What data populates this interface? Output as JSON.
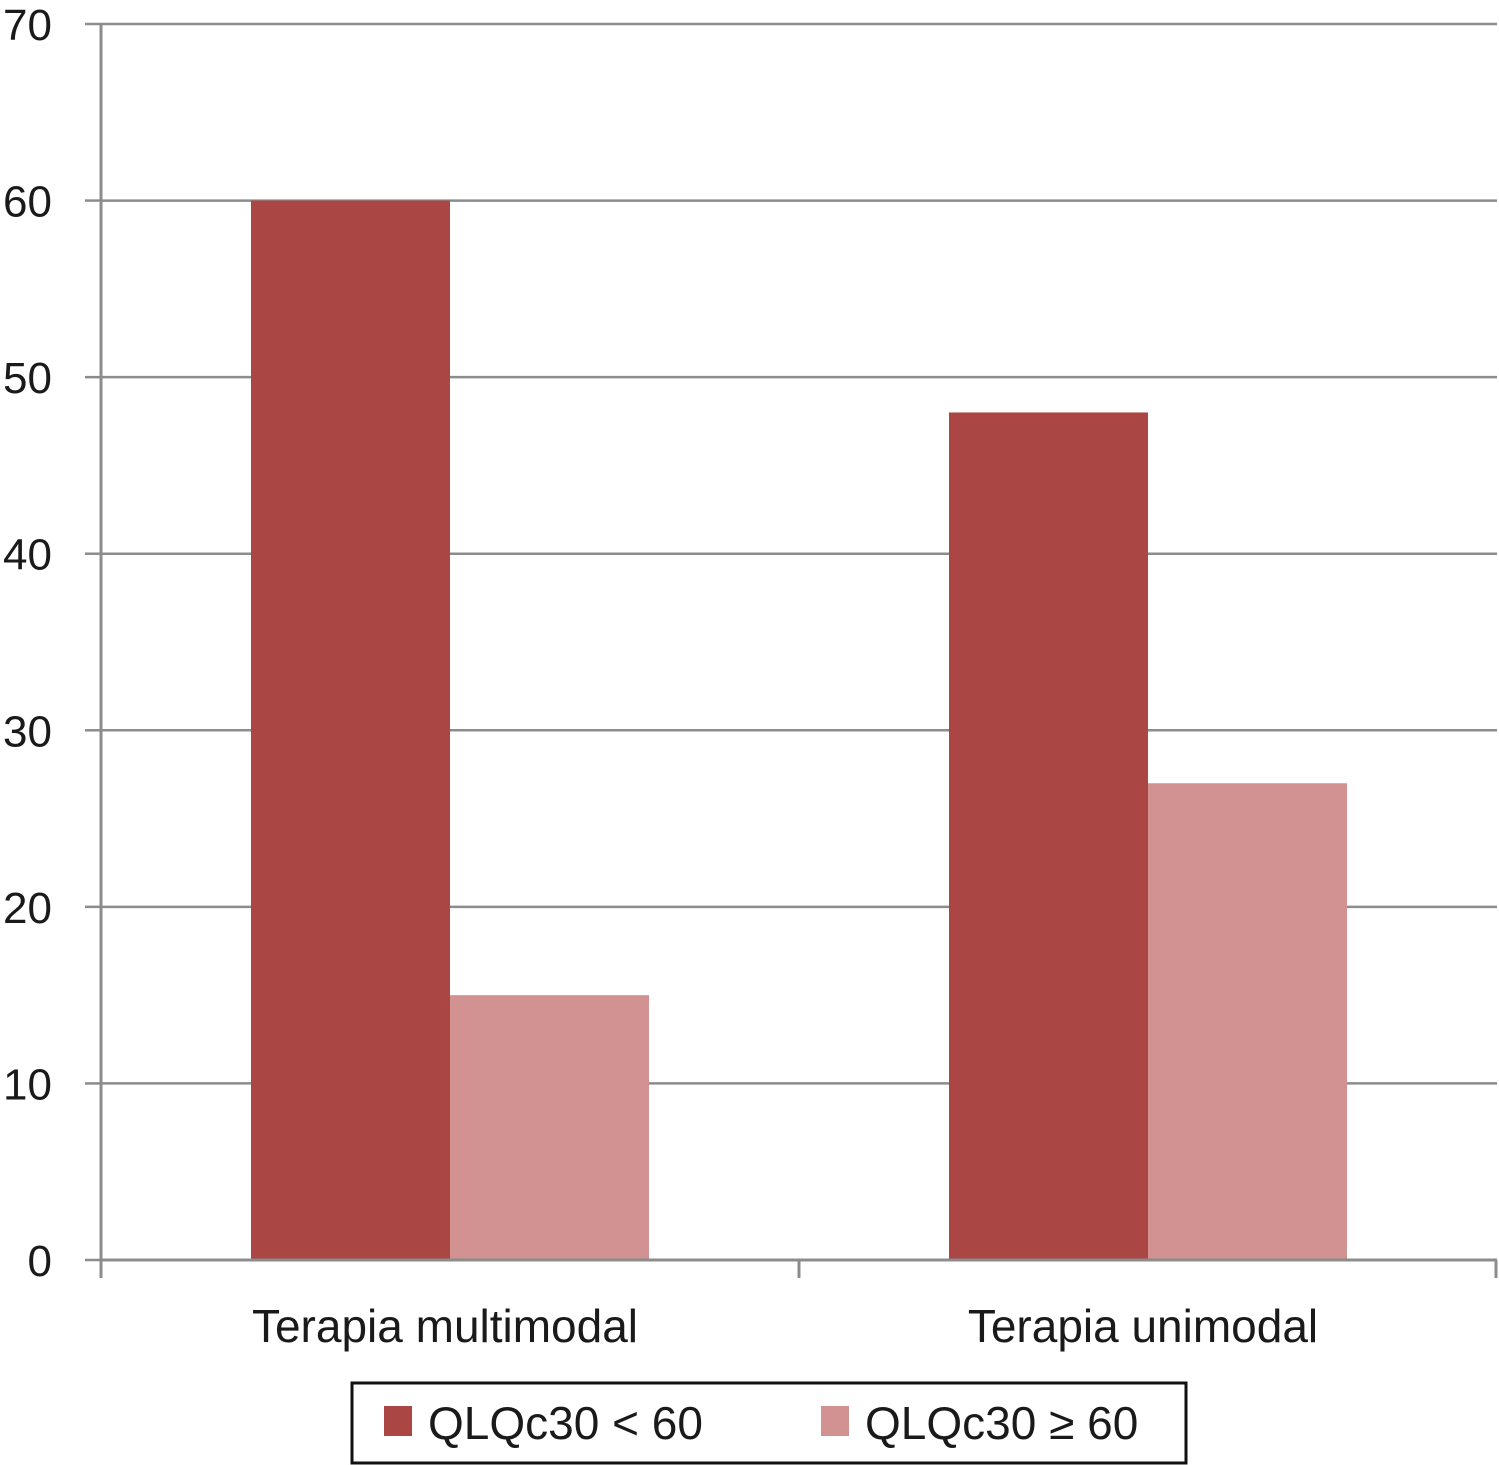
{
  "chart_data": {
    "type": "bar",
    "title": "",
    "xlabel": "",
    "ylabel": "",
    "categories": [
      "Terapia multimodal",
      "Terapia unimodal"
    ],
    "series": [
      {
        "name": "QLQc30 < 60",
        "values": [
          60,
          48
        ],
        "color": "#aa4744"
      },
      {
        "name": "QLQc30 ≥ 60",
        "values": [
          15,
          27
        ],
        "color": "#d29291"
      }
    ],
    "ylim": [
      0,
      70
    ],
    "yticks": [
      0,
      10,
      20,
      30,
      40,
      50,
      60,
      70
    ],
    "grid": true,
    "legend_position": "bottom",
    "axis_color": "#8c8c8c"
  }
}
